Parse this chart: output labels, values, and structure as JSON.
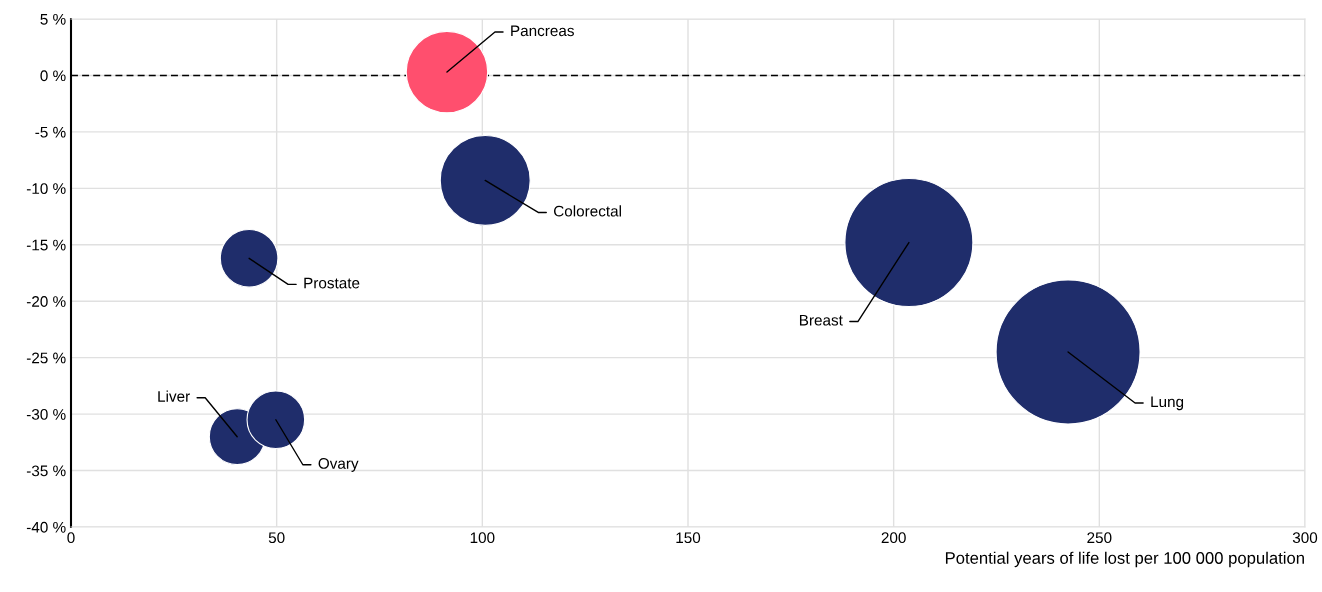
{
  "chart_data": {
    "type": "bubble",
    "xlabel": "Potential years of life lost per 100 000 population",
    "x": [
      91.4,
      100.7,
      43.3,
      203.7,
      242.4,
      40.4,
      49.8
    ],
    "values": [
      0.3,
      -9.3,
      -16.2,
      -14.8,
      -24.5,
      -32.0,
      -30.5
    ],
    "sizes": [
      0.32,
      0.39,
      0.16,
      0.79,
      1,
      0.15,
      0.16
    ],
    "colors": [
      "#ff4f6e",
      "#1f2d6b",
      "#1f2d6b",
      "#1f2d6b",
      "#1f2d6b",
      "#1f2d6b",
      "#1f2d6b"
    ],
    "annotations": [
      {
        "text": "Pancreas",
        "x": 91.4,
        "y": 0.3
      },
      {
        "text": "Colorectal",
        "x": 100.7,
        "y": -9.3
      },
      {
        "text": "Prostate",
        "x": 43.3,
        "y": -16.2
      },
      {
        "text": "Breast",
        "x": 203.7,
        "y": -14.8
      },
      {
        "text": "Lung",
        "x": 242.4,
        "y": -24.5
      },
      {
        "text": "Liver",
        "x": 40.4,
        "y": -32.0
      },
      {
        "text": "Ovary",
        "x": 49.8,
        "y": -30.5
      }
    ],
    "xlim": [
      0,
      300
    ],
    "xticks": [
      0,
      50,
      100,
      150,
      200,
      250,
      300
    ],
    "ylim": [
      -40,
      5
    ],
    "yticks": [
      {
        "value": 5,
        "label": "5 %"
      },
      {
        "value": 0,
        "label": "0 %"
      },
      {
        "value": -5,
        "label": "-5 %"
      },
      {
        "value": -10,
        "label": "-10 %"
      },
      {
        "value": -15,
        "label": "-15 %"
      },
      {
        "value": -20,
        "label": "-20 %"
      },
      {
        "value": -25,
        "label": "-25 %"
      },
      {
        "value": -30,
        "label": "-30 %"
      },
      {
        "value": -35,
        "label": "-35 %"
      },
      {
        "value": -40,
        "label": "-40 %"
      }
    ],
    "ref_lines": [
      {
        "axis": "y",
        "value": 0,
        "color": "#000000",
        "line_style": "dashed"
      }
    ],
    "grid": true
  }
}
